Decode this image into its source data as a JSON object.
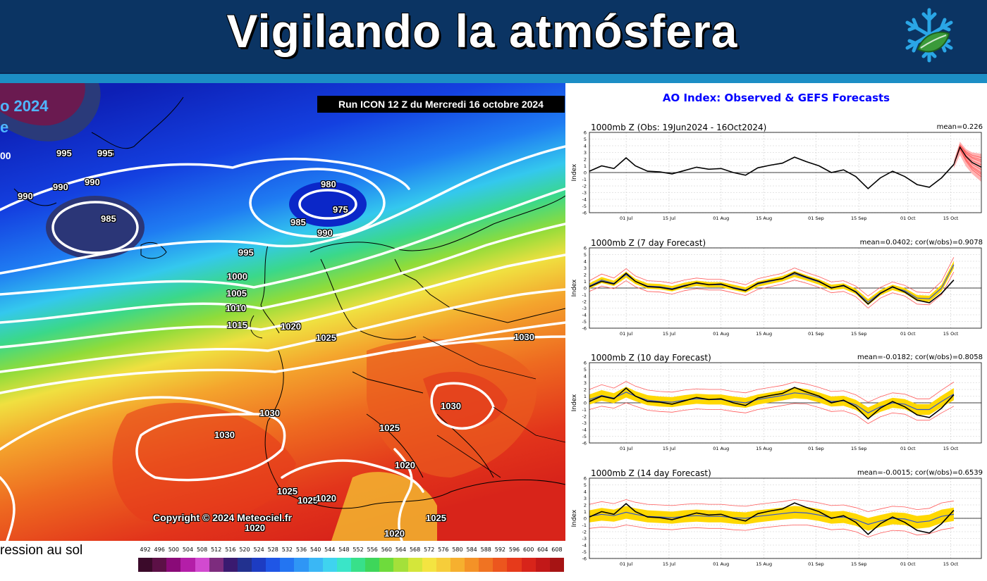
{
  "banner": {
    "title": "Vigilando la atmósfera",
    "logo_icon": "snowflake-leaf-icon",
    "background": "#0b3463",
    "stripe_color": "#1c8ec5"
  },
  "map": {
    "run_label": "Run ICON 12 Z du Mercredi 16 octobre 2024",
    "partial_title_1": "o 2024",
    "partial_title_2": "e",
    "partial_number": "00",
    "copyright": "Copyright © 2024 Meteociel.fr",
    "isobar_labels": [
      "995",
      "995",
      "990",
      "990",
      "995",
      "990",
      "985",
      "980",
      "975",
      "985",
      "990",
      "995",
      "1000",
      "1005",
      "1010",
      "1015",
      "1020",
      "1025",
      "1030",
      "1030",
      "1030",
      "1030",
      "1025",
      "1020",
      "1025",
      "1025",
      "1020",
      "1025",
      "1020",
      "1020"
    ],
    "legend_label": "ression au sol",
    "scale_values": [
      "492",
      "496",
      "500",
      "504",
      "508",
      "512",
      "516",
      "520",
      "524",
      "528",
      "532",
      "536",
      "540",
      "544",
      "548",
      "552",
      "556",
      "560",
      "564",
      "568",
      "572",
      "576",
      "580",
      "584",
      "588",
      "592",
      "596",
      "600",
      "604",
      "608"
    ],
    "scale_colors": [
      "#3b0a2a",
      "#5c1046",
      "#8a0a78",
      "#b41ea8",
      "#d24ad0",
      "#7d2c7e",
      "#3a1a70",
      "#22318f",
      "#1d3cc2",
      "#1f56e6",
      "#2375f2",
      "#2f96f5",
      "#3ab7f5",
      "#3fd3ef",
      "#3ae5c8",
      "#38e08a",
      "#3ed65a",
      "#6edb3c",
      "#a4e03a",
      "#d4e63a",
      "#f4e441",
      "#f6cd3a",
      "#f6b02f",
      "#f49227",
      "#f07322",
      "#ec561e",
      "#e63a1b",
      "#d8241a",
      "#c21818",
      "#a61414"
    ]
  },
  "ao": {
    "title": "AO Index: Observed & GEFS Forecasts",
    "x_tick_labels": [
      "01 Jul",
      "15 Jul",
      "01 Aug",
      "15 Aug",
      "01 Sep",
      "15 Sep",
      "01 Oct",
      "15 Oct"
    ],
    "y_tick_labels": [
      "6",
      "5",
      "4",
      "3",
      "2",
      "1",
      "0",
      "-1",
      "-2",
      "-3",
      "-4",
      "-5",
      "-6"
    ],
    "ylabel": "Index",
    "colors": {
      "observed": "#000000",
      "ensemble": "#ff5a5a",
      "spread": "#ffd800",
      "mean": "#3355cc"
    },
    "panels": [
      {
        "title": "1000mb Z (Obs: 19Jun2024 - 16Oct2024)",
        "stats": "mean=0.226"
      },
      {
        "title": "1000mb Z (7 day Forecast)",
        "stats": "mean=0.0402; cor(w/obs)=0.9078"
      },
      {
        "title": "1000mb Z (10 day Forecast)",
        "stats": "mean=-0.0182; cor(w/obs)=0.8058"
      },
      {
        "title": "1000mb Z (14 day Forecast)",
        "stats": "mean=-0.0015; cor(w/obs)=0.6539"
      }
    ]
  },
  "chart_data": {
    "type": "line",
    "title": "AO Index: Observed & GEFS Forecasts",
    "ylabel": "Index",
    "ylim": [
      -6,
      6
    ],
    "xlim": [
      "2024-06-19",
      "2024-10-25"
    ],
    "x_ticks": [
      "01 Jul",
      "15 Jul",
      "01 Aug",
      "15 Aug",
      "01 Sep",
      "15 Sep",
      "01 Oct",
      "15 Oct"
    ],
    "grid": true,
    "x": [
      "2024-06-19",
      "2024-06-23",
      "2024-06-27",
      "2024-07-01",
      "2024-07-04",
      "2024-07-08",
      "2024-07-12",
      "2024-07-16",
      "2024-07-20",
      "2024-07-24",
      "2024-07-28",
      "2024-08-01",
      "2024-08-05",
      "2024-08-09",
      "2024-08-13",
      "2024-08-17",
      "2024-08-21",
      "2024-08-25",
      "2024-08-29",
      "2024-09-02",
      "2024-09-06",
      "2024-09-10",
      "2024-09-14",
      "2024-09-18",
      "2024-09-22",
      "2024-09-26",
      "2024-09-30",
      "2024-10-04",
      "2024-10-08",
      "2024-10-12",
      "2024-10-16"
    ],
    "observed": [
      0.2,
      1.0,
      0.6,
      2.2,
      1.0,
      0.2,
      0.1,
      -0.2,
      0.3,
      0.8,
      0.5,
      0.6,
      0.0,
      -0.4,
      0.7,
      1.1,
      1.4,
      2.3,
      1.6,
      1.0,
      0.0,
      0.4,
      -0.6,
      -2.4,
      -0.8,
      0.2,
      -0.6,
      -1.8,
      -2.2,
      -0.8,
      1.2
    ],
    "forecast_tail": {
      "x": [
        "2024-10-16",
        "2024-10-18",
        "2024-10-20",
        "2024-10-22",
        "2024-10-25"
      ],
      "mean": [
        1.2,
        3.8,
        2.4,
        1.5,
        0.8
      ],
      "min": [
        0.6,
        2.6,
        0.9,
        -0.2,
        -1.4
      ],
      "max": [
        1.8,
        4.6,
        3.5,
        3.0,
        2.8
      ]
    },
    "series": [
      {
        "name": "1000mb Z (7 day Forecast)",
        "mean": [
          0.3,
          1.2,
          0.7,
          2.0,
          1.0,
          0.3,
          0.2,
          -0.1,
          0.4,
          0.7,
          0.5,
          0.5,
          0.1,
          -0.3,
          0.6,
          1.0,
          1.4,
          2.1,
          1.5,
          0.9,
          0.1,
          0.3,
          -0.5,
          -2.1,
          -0.7,
          0.1,
          -0.4,
          -1.5,
          -1.6,
          0.0,
          3.5
        ],
        "spread": [
          0.8,
          0.9,
          0.8,
          0.9,
          0.8,
          0.8,
          0.8,
          0.8,
          0.8,
          0.8,
          0.8,
          0.8,
          0.8,
          0.8,
          0.8,
          0.8,
          0.8,
          0.9,
          0.8,
          0.8,
          0.8,
          0.8,
          0.8,
          0.9,
          0.8,
          0.8,
          0.8,
          0.9,
          0.9,
          1.0,
          1.1
        ]
      },
      {
        "name": "1000mb Z (10 day Forecast)",
        "mean": [
          0.5,
          1.1,
          0.7,
          1.6,
          1.0,
          0.4,
          0.2,
          0.1,
          0.4,
          0.6,
          0.5,
          0.5,
          0.2,
          0.0,
          0.5,
          0.8,
          1.1,
          1.5,
          1.3,
          0.8,
          0.2,
          0.3,
          -0.3,
          -1.5,
          -0.6,
          0.0,
          -0.2,
          -1.0,
          -1.0,
          0.2,
          1.3
        ],
        "spread": [
          1.5,
          1.6,
          1.5,
          1.6,
          1.5,
          1.5,
          1.5,
          1.5,
          1.5,
          1.5,
          1.5,
          1.5,
          1.5,
          1.5,
          1.5,
          1.5,
          1.5,
          1.6,
          1.5,
          1.5,
          1.5,
          1.5,
          1.5,
          1.6,
          1.5,
          1.5,
          1.5,
          1.6,
          1.6,
          1.7,
          1.8
        ]
      },
      {
        "name": "1000mb Z (14 day Forecast)",
        "mean": [
          0.3,
          0.6,
          0.4,
          0.9,
          0.6,
          0.3,
          0.2,
          0.1,
          0.3,
          0.4,
          0.3,
          0.3,
          0.1,
          0.0,
          0.3,
          0.5,
          0.7,
          0.9,
          0.8,
          0.5,
          0.1,
          0.2,
          -0.2,
          -0.9,
          -0.4,
          0.0,
          -0.1,
          -0.6,
          -0.4,
          0.3,
          0.6
        ],
        "spread": [
          1.8,
          1.9,
          1.8,
          1.9,
          1.8,
          1.8,
          1.8,
          1.8,
          1.8,
          1.8,
          1.8,
          1.8,
          1.8,
          1.8,
          1.8,
          1.8,
          1.8,
          1.9,
          1.8,
          1.8,
          1.8,
          1.8,
          1.8,
          1.9,
          1.8,
          1.8,
          1.8,
          1.9,
          1.9,
          2.0,
          2.0
        ]
      }
    ]
  }
}
